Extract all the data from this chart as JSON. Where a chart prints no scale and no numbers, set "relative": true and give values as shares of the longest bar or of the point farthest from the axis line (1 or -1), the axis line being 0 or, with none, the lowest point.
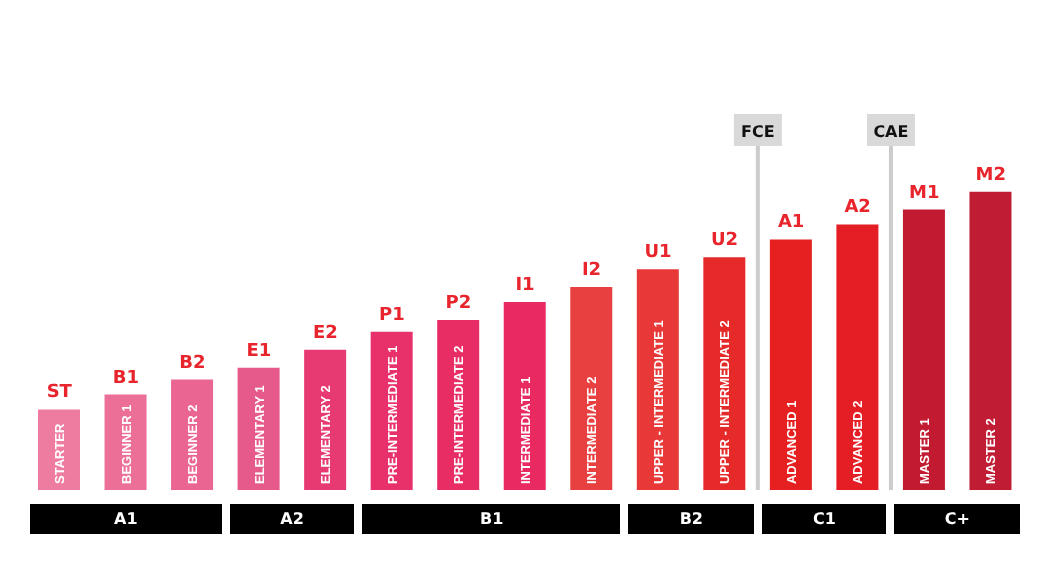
{
  "chart_data": {
    "type": "bar",
    "relative": true,
    "categories": [
      "STARTER",
      "BEGINNER 1",
      "BEGINNER 2",
      "ELEMENTARY 1",
      "ELEMENTARY 2",
      "PRE-INTERMEDIATE 1",
      "PRE-INTERMEDIATE 2",
      "INTERMEDIATE 1",
      "INTERMEDIATE 2",
      "UPPER - INTERMEDIATE 1",
      "UPPER - INTERMEDIATE 2",
      "ADVANCED 1",
      "ADVANCED 2",
      "MASTER 1",
      "MASTER 2"
    ],
    "values": [
      0.27,
      0.32,
      0.37,
      0.41,
      0.47,
      0.53,
      0.57,
      0.63,
      0.68,
      0.74,
      0.78,
      0.84,
      0.89,
      0.94,
      1
    ],
    "colors": [
      "#ee7ba0",
      "#ec6f98",
      "#ea6592",
      "#e55a8a",
      "#e83a72",
      "#e8306a",
      "#e82d65",
      "#e82a60",
      "#e84040",
      "#e83838",
      "#e62a2a",
      "#e62020",
      "#e41e24",
      "#c21a30",
      "#c01c34"
    ],
    "annotations": [
      {
        "text": "ST",
        "x": "STARTER",
        "y": 0.27
      },
      {
        "text": "B1",
        "x": "BEGINNER 1",
        "y": 0.32
      },
      {
        "text": "B2",
        "x": "BEGINNER 2",
        "y": 0.37
      },
      {
        "text": "E1",
        "x": "ELEMENTARY 1",
        "y": 0.41
      },
      {
        "text": "E2",
        "x": "ELEMENTARY 2",
        "y": 0.47
      },
      {
        "text": "P1",
        "x": "PRE-INTERMEDIATE 1",
        "y": 0.53
      },
      {
        "text": "P2",
        "x": "PRE-INTERMEDIATE 2",
        "y": 0.57
      },
      {
        "text": "I1",
        "x": "INTERMEDIATE 1",
        "y": 0.63
      },
      {
        "text": "I2",
        "x": "INTERMEDIATE 2",
        "y": 0.68
      },
      {
        "text": "U1",
        "x": "UPPER - INTERMEDIATE 1",
        "y": 0.74
      },
      {
        "text": "U2",
        "x": "UPPER - INTERMEDIATE 2",
        "y": 0.78
      },
      {
        "text": "A1",
        "x": "ADVANCED 1",
        "y": 0.84
      },
      {
        "text": "A2",
        "x": "ADVANCED 2",
        "y": 0.89
      },
      {
        "text": "M1",
        "x": "MASTER 1",
        "y": 0.94
      },
      {
        "text": "M2",
        "x": "MASTER 2",
        "y": 1
      },
      "A1",
      "A2",
      "B1",
      "B2",
      "C1",
      "C+",
      "FCE",
      "CAE"
    ]
  }
}
